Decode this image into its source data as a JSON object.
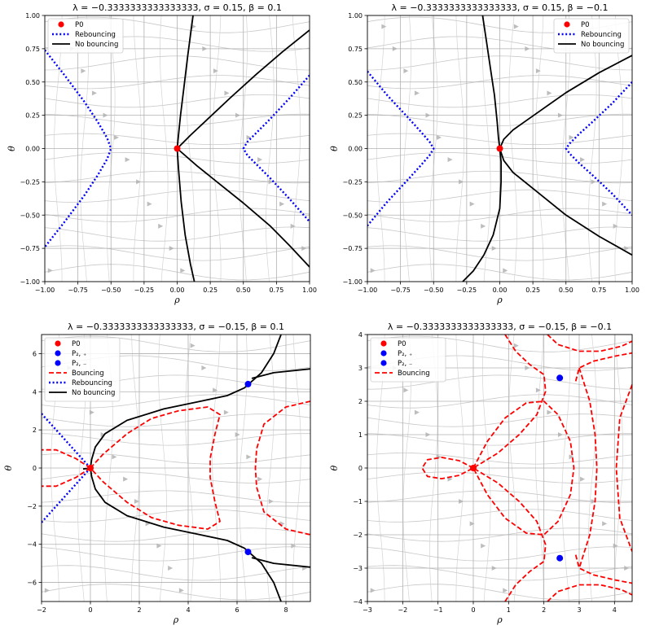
{
  "chart_data": [
    {
      "type": "line",
      "title": "λ = −0.3333333333333333, σ = 0.15, β = 0.1",
      "xlabel": "ρ",
      "ylabel": "θ",
      "xlim": [
        -1,
        1
      ],
      "ylim": [
        -1,
        1
      ],
      "xticks": [
        -1,
        -0.75,
        -0.5,
        -0.25,
        0,
        0.25,
        0.5,
        0.75,
        1
      ],
      "xtick_labels": [
        "−1.00",
        "−0.75",
        "−0.50",
        "−0.25",
        "0.00",
        "0.25",
        "0.50",
        "0.75",
        "1.00"
      ],
      "yticks": [
        -1,
        -0.75,
        -0.5,
        -0.25,
        0,
        0.25,
        0.5,
        0.75,
        1
      ],
      "ytick_labels": [
        "−1.00",
        "−0.75",
        "−0.50",
        "−0.25",
        "0.00",
        "0.25",
        "0.50",
        "0.75",
        "1.00"
      ],
      "grid": true,
      "legend": {
        "placement": "top-left",
        "entries": [
          {
            "label": "P0",
            "kind": "point",
            "color": "#ff0000"
          },
          {
            "label": "Rebouncing",
            "kind": "dotted",
            "color": "#0000ff"
          },
          {
            "label": "No bouncing",
            "kind": "solid",
            "color": "#000000"
          }
        ]
      },
      "points": [
        {
          "name": "P0",
          "x": 0,
          "y": 0,
          "color": "#ff0000"
        }
      ],
      "series": [
        {
          "name": "Rebouncing",
          "style": "dotted",
          "color": "#0000ff",
          "x": [
            -1.0,
            -0.85,
            -0.7,
            -0.6,
            -0.53,
            -0.5,
            -0.53,
            -0.6,
            -0.7,
            -0.85,
            -1.0
          ],
          "y": [
            0.74,
            0.55,
            0.35,
            0.2,
            0.08,
            0.0,
            -0.08,
            -0.2,
            -0.35,
            -0.55,
            -0.74
          ]
        },
        {
          "name": "Rebouncing",
          "style": "dotted",
          "color": "#0000ff",
          "x": [
            1.0,
            0.85,
            0.7,
            0.6,
            0.53,
            0.5,
            0.53,
            0.6,
            0.7,
            0.85,
            1.0
          ],
          "y": [
            0.55,
            0.38,
            0.22,
            0.12,
            0.05,
            0.0,
            -0.05,
            -0.12,
            -0.22,
            -0.38,
            -0.55
          ]
        },
        {
          "name": "No bouncing",
          "style": "solid",
          "color": "#000000",
          "x": [
            0.12,
            0.08,
            0.05,
            0.025,
            0.01,
            0.0,
            0.01,
            0.03,
            0.06,
            0.1,
            0.13
          ],
          "y": [
            1.0,
            0.7,
            0.45,
            0.25,
            0.1,
            0.0,
            -0.15,
            -0.4,
            -0.65,
            -0.87,
            -1.0
          ]
        },
        {
          "name": "No bouncing",
          "style": "solid",
          "color": "#000000",
          "x": [
            0.0,
            0.1,
            0.25,
            0.4,
            0.6,
            0.8,
            1.0
          ],
          "y": [
            0.0,
            0.1,
            0.24,
            0.38,
            0.56,
            0.73,
            0.89
          ]
        },
        {
          "name": "No bouncing",
          "style": "solid",
          "color": "#000000",
          "x": [
            0.0,
            0.15,
            0.3,
            0.5,
            0.7,
            0.85,
            1.0
          ],
          "y": [
            0.0,
            -0.13,
            -0.25,
            -0.41,
            -0.58,
            -0.73,
            -0.89
          ]
        }
      ]
    },
    {
      "type": "line",
      "title": "λ = −0.3333333333333333, σ = 0.15, β = −0.1",
      "xlabel": "ρ",
      "ylabel": "θ",
      "xlim": [
        -1,
        1
      ],
      "ylim": [
        -1,
        1
      ],
      "xticks": [
        -1,
        -0.75,
        -0.5,
        -0.25,
        0,
        0.25,
        0.5,
        0.75,
        1
      ],
      "xtick_labels": [
        "−1.00",
        "−0.75",
        "−0.50",
        "−0.25",
        "0.00",
        "0.25",
        "0.50",
        "0.75",
        "1.00"
      ],
      "yticks": [
        -1,
        -0.75,
        -0.5,
        -0.25,
        0,
        0.25,
        0.5,
        0.75,
        1
      ],
      "ytick_labels": [
        "−1.00",
        "−0.75",
        "−0.50",
        "−0.25",
        "0.00",
        "0.25",
        "0.50",
        "0.75",
        "1.00"
      ],
      "grid": true,
      "legend": {
        "placement": "top-right",
        "entries": [
          {
            "label": "P0",
            "kind": "point",
            "color": "#ff0000"
          },
          {
            "label": "Rebouncing",
            "kind": "dotted",
            "color": "#0000ff"
          },
          {
            "label": "No bouncing",
            "kind": "solid",
            "color": "#000000"
          }
        ]
      },
      "points": [
        {
          "name": "P0",
          "x": 0,
          "y": 0,
          "color": "#ff0000"
        }
      ],
      "series": [
        {
          "name": "Rebouncing",
          "style": "dotted",
          "color": "#0000ff",
          "x": [
            -1.0,
            -0.85,
            -0.7,
            -0.6,
            -0.53,
            -0.5,
            -0.53,
            -0.6,
            -0.7,
            -0.85,
            -1.0
          ],
          "y": [
            0.58,
            0.4,
            0.24,
            0.13,
            0.05,
            0.0,
            -0.05,
            -0.13,
            -0.24,
            -0.4,
            -0.58
          ]
        },
        {
          "name": "Rebouncing",
          "style": "dotted",
          "color": "#0000ff",
          "x": [
            1.0,
            0.85,
            0.7,
            0.6,
            0.53,
            0.5,
            0.53,
            0.6,
            0.7,
            0.85,
            1.0
          ],
          "y": [
            0.5,
            0.34,
            0.2,
            0.11,
            0.04,
            0.0,
            -0.04,
            -0.11,
            -0.2,
            -0.34,
            -0.5
          ]
        },
        {
          "name": "No bouncing",
          "style": "solid",
          "color": "#000000",
          "x": [
            -0.13,
            -0.1,
            -0.07,
            -0.04,
            -0.02,
            -0.01,
            0.0
          ],
          "y": [
            1.0,
            0.8,
            0.6,
            0.4,
            0.2,
            0.08,
            0.0
          ]
        },
        {
          "name": "No bouncing",
          "style": "solid",
          "color": "#000000",
          "x": [
            0.0,
            0.01,
            0.01,
            0.0,
            -0.05,
            -0.12,
            -0.2,
            -0.28
          ],
          "y": [
            0.0,
            -0.1,
            -0.25,
            -0.45,
            -0.65,
            -0.8,
            -0.92,
            -1.0
          ]
        },
        {
          "name": "No bouncing",
          "style": "solid",
          "color": "#000000",
          "x": [
            0.0,
            0.03,
            0.1,
            0.3,
            0.5,
            0.75,
            1.0
          ],
          "y": [
            0.0,
            0.07,
            0.14,
            0.28,
            0.42,
            0.57,
            0.7
          ]
        },
        {
          "name": "No bouncing",
          "style": "solid",
          "color": "#000000",
          "x": [
            0.0,
            0.03,
            0.1,
            0.3,
            0.5,
            0.75,
            1.0
          ],
          "y": [
            0.0,
            -0.09,
            -0.18,
            -0.34,
            -0.5,
            -0.66,
            -0.8
          ]
        }
      ]
    },
    {
      "type": "line",
      "title": "λ = −0.3333333333333333, σ = −0.15, β = 0.1",
      "xlabel": "ρ",
      "ylabel": "θ",
      "xlim": [
        -2,
        9
      ],
      "ylim": [
        -7,
        7
      ],
      "xticks": [
        -2,
        0,
        2,
        4,
        6,
        8
      ],
      "xtick_labels": [
        "−2",
        "0",
        "2",
        "4",
        "6",
        "8"
      ],
      "yticks": [
        -6,
        -4,
        -2,
        0,
        2,
        4,
        6
      ],
      "ytick_labels": [
        "−6",
        "−4",
        "−2",
        "0",
        "2",
        "4",
        "6"
      ],
      "grid": true,
      "legend": {
        "placement": "top-left",
        "entries": [
          {
            "label": "P0",
            "kind": "point",
            "color": "#ff0000"
          },
          {
            "label": "P₂, ₊",
            "kind": "point",
            "color": "#0000ff"
          },
          {
            "label": "P₂, ₋",
            "kind": "point",
            "color": "#0000ff"
          },
          {
            "label": "Bouncing",
            "kind": "dashed",
            "color": "#ff0000"
          },
          {
            "label": "Rebouncing",
            "kind": "dotted",
            "color": "#0000ff"
          },
          {
            "label": "No bouncing",
            "kind": "solid",
            "color": "#000000"
          }
        ]
      },
      "points": [
        {
          "name": "P0",
          "x": 0,
          "y": 0,
          "color": "#ff0000"
        },
        {
          "name": "P2,+",
          "x": 6.45,
          "y": 4.4,
          "color": "#0000ff"
        },
        {
          "name": "P2,-",
          "x": 6.45,
          "y": -4.4,
          "color": "#0000ff"
        }
      ]
    },
    {
      "type": "line",
      "title": "λ = −0.3333333333333333, σ = −0.15, β = −0.1",
      "xlabel": "ρ",
      "ylabel": "θ",
      "xlim": [
        -3,
        4.5
      ],
      "ylim": [
        -4,
        4
      ],
      "xticks": [
        -3,
        -2,
        -1,
        0,
        1,
        2,
        3,
        4
      ],
      "xtick_labels": [
        "−3",
        "−2",
        "−1",
        "0",
        "1",
        "2",
        "3",
        "4"
      ],
      "yticks": [
        -4,
        -3,
        -2,
        -1,
        0,
        1,
        2,
        3,
        4
      ],
      "ytick_labels": [
        "−4",
        "−3",
        "−2",
        "−1",
        "0",
        "1",
        "2",
        "3",
        "4"
      ],
      "grid": true,
      "legend": {
        "placement": "top-left",
        "entries": [
          {
            "label": "P0",
            "kind": "point",
            "color": "#ff0000"
          },
          {
            "label": "P₂, ₊",
            "kind": "point",
            "color": "#0000ff"
          },
          {
            "label": "P₂, ₋",
            "kind": "point",
            "color": "#0000ff"
          },
          {
            "label": "Bouncing",
            "kind": "dashed",
            "color": "#ff0000"
          }
        ]
      },
      "points": [
        {
          "name": "P0",
          "x": 0,
          "y": 0,
          "color": "#ff0000"
        },
        {
          "name": "P2,+",
          "x": 2.45,
          "y": 2.7,
          "color": "#0000ff"
        },
        {
          "name": "P2,-",
          "x": 2.45,
          "y": -2.7,
          "color": "#0000ff"
        }
      ]
    }
  ]
}
